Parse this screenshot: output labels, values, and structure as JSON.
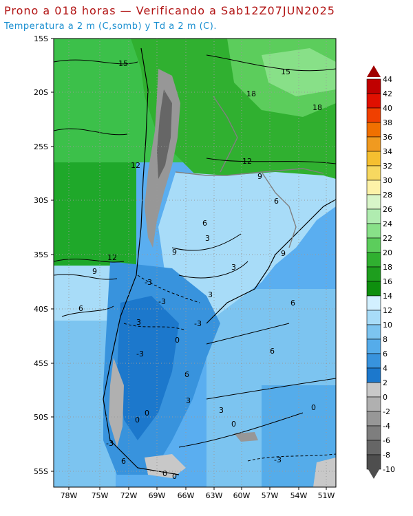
{
  "header": {
    "title": "Prono a 018 horas — Verificando a Sab12Z07JUN2025",
    "subtitle": "Temperatura a 2 m (C,somb) y Td a 2 m (C)."
  },
  "map": {
    "lat_labels": [
      "15S",
      "20S",
      "25S",
      "30S",
      "35S",
      "40S",
      "45S",
      "50S",
      "55S"
    ],
    "lon_labels": [
      "78W",
      "75W",
      "72W",
      "69W",
      "66W",
      "63W",
      "60W",
      "57W",
      "54W",
      "51W"
    ],
    "contour_labels": [
      "15",
      "18",
      "18",
      "15",
      "12",
      "12",
      "12",
      "9",
      "9",
      "6",
      "9",
      "6",
      "9",
      "3",
      "3",
      "6",
      "3",
      "0",
      "3",
      "6",
      "-3",
      "0",
      "6",
      "-3",
      "-3",
      "3",
      "-3",
      "6",
      "3",
      "0",
      "0",
      "-3",
      "6",
      "0",
      "-3",
      "0",
      "0"
    ],
    "ocean_color": "#1f7fd9"
  },
  "colorbar": {
    "labels": [
      "44",
      "42",
      "40",
      "38",
      "36",
      "34",
      "32",
      "30",
      "28",
      "26",
      "24",
      "22",
      "20",
      "18",
      "16",
      "14",
      "12",
      "10",
      "8",
      "6",
      "4",
      "2",
      "0",
      "-2",
      "-4",
      "-6",
      "-8",
      "-10"
    ],
    "colors": [
      "#a00000",
      "#c00000",
      "#e01000",
      "#f04000",
      "#f07000",
      "#f09a20",
      "#f5bf30",
      "#f7d860",
      "#fdf2a8",
      "#d8f5c8",
      "#b0ecb0",
      "#88e088",
      "#5ccd5c",
      "#30b030",
      "#1e9e1e",
      "#0e8f0e",
      "#d2f0ff",
      "#a8dcf8",
      "#7cc4f0",
      "#55acea",
      "#3893dd",
      "#1c78cc",
      "#c8c8c8",
      "#b0b0b0",
      "#979797",
      "#7e7e7e",
      "#666666",
      "#4e4e4e"
    ]
  }
}
